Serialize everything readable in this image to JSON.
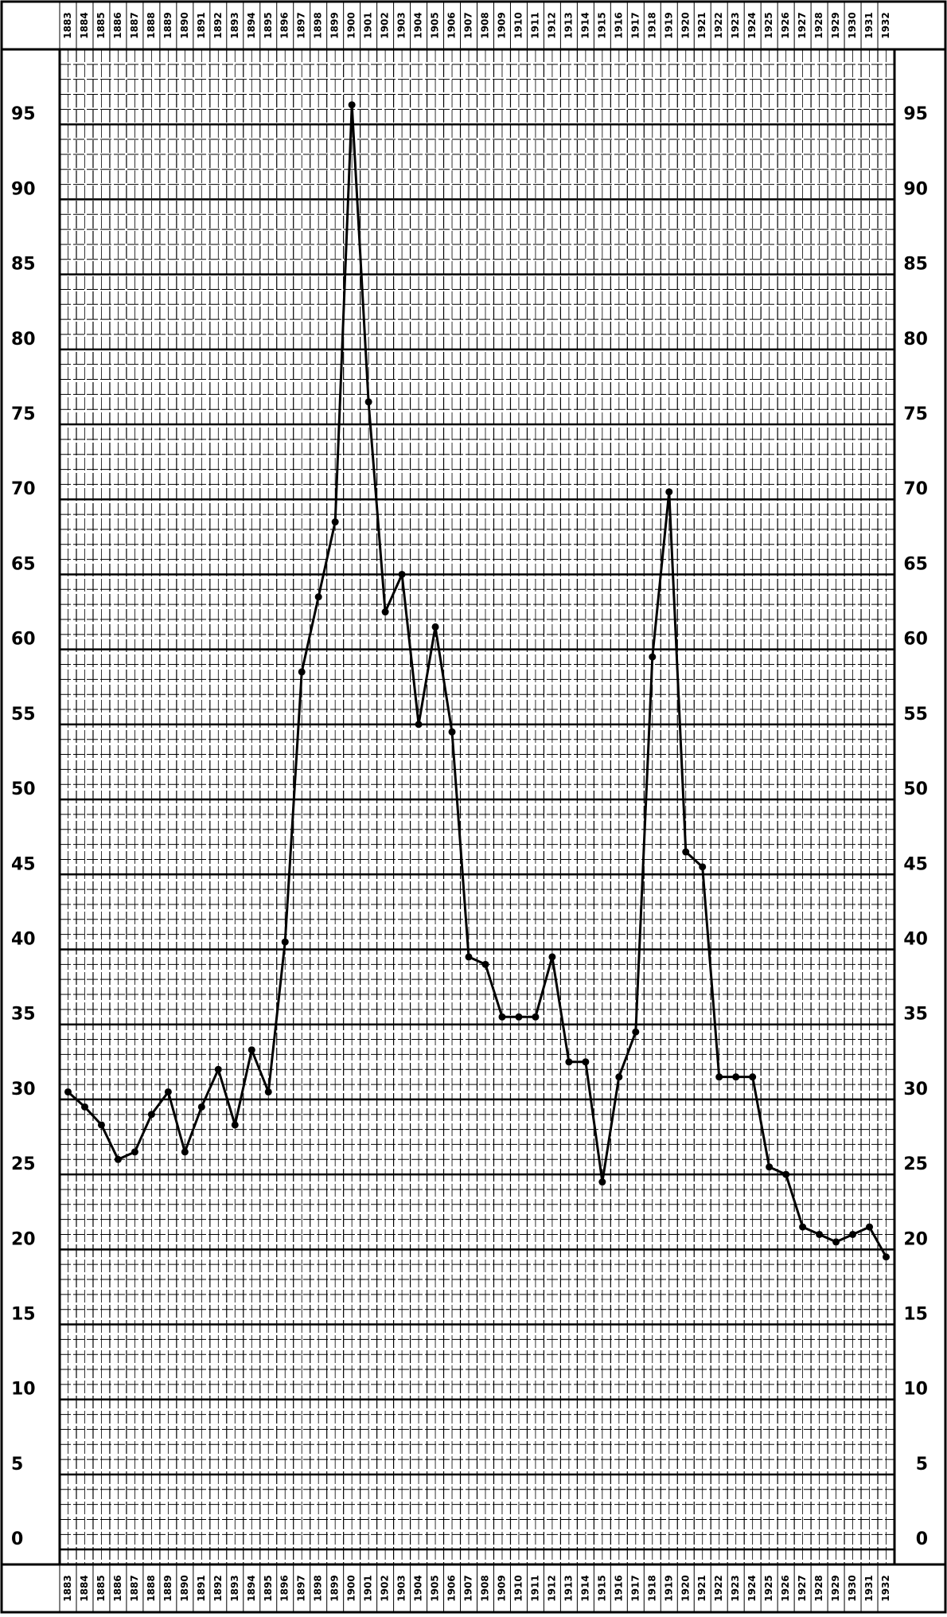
{
  "chart_data": {
    "type": "line",
    "categories": [
      "1883",
      "1884",
      "1885",
      "1886",
      "1887",
      "1888",
      "1889",
      "1890",
      "1891",
      "1892",
      "1893",
      "1894",
      "1895",
      "1896",
      "1897",
      "1898",
      "1899",
      "1900",
      "1901",
      "1902",
      "1903",
      "1904",
      "1905",
      "1906",
      "1907",
      "1908",
      "1909",
      "1910",
      "1911",
      "1912",
      "1913",
      "1914",
      "1915",
      "1916",
      "1917",
      "1918",
      "1919",
      "1920",
      "1921",
      "1922",
      "1923",
      "1924",
      "1925",
      "1926",
      "1927",
      "1928",
      "1929",
      "1930",
      "1931",
      "1932"
    ],
    "values": [
      30.5,
      29.5,
      28.3,
      26,
      26.5,
      29,
      30.5,
      26.5,
      29.5,
      32,
      28.3,
      33.3,
      30.5,
      40.5,
      58.5,
      63.5,
      68.5,
      96.3,
      76.5,
      62.5,
      65,
      55,
      61.5,
      54.5,
      39.5,
      39,
      35.5,
      35.5,
      35.5,
      39.5,
      32.5,
      32.5,
      24.5,
      31.5,
      34.5,
      59.5,
      70.5,
      46.5,
      45.5,
      31.5,
      31.5,
      31.5,
      25.5,
      25,
      21.5,
      21,
      20.5,
      21,
      21.5,
      19.5
    ],
    "color": "#000000",
    "ylim": [
      -1,
      100
    ],
    "yticks": [
      0,
      5,
      10,
      15,
      20,
      25,
      30,
      35,
      40,
      45,
      50,
      55,
      60,
      65,
      70,
      75,
      80,
      85,
      90,
      95
    ],
    "grid": true
  }
}
